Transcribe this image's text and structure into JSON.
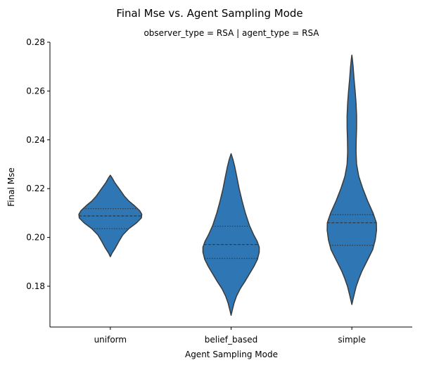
{
  "chart_data": {
    "type": "violin",
    "title": "Final Mse vs. Agent Sampling Mode",
    "subtitle": "observer_type = RSA | agent_type = RSA",
    "xlabel": "Agent Sampling Mode",
    "ylabel": "Final Mse",
    "categories": [
      "uniform",
      "belief_based",
      "simple"
    ],
    "ylim": [
      0.164,
      0.28
    ],
    "yticks": [
      0.18,
      0.2,
      0.22,
      0.24,
      0.26,
      0.28
    ],
    "ytick_labels": [
      "0.18",
      "0.20",
      "0.22",
      "0.24",
      "0.26",
      "0.28"
    ],
    "grid": false,
    "colors": {
      "fill": "#2f77b4",
      "edge": "#3a3a3a"
    },
    "violins": [
      {
        "category": "uniform",
        "min": 0.1921,
        "max": 0.2255,
        "q1": 0.2036,
        "median": 0.2088,
        "q3": 0.2118,
        "profile": [
          [
            0.1921,
            0.0
          ],
          [
            0.1935,
            0.045
          ],
          [
            0.1955,
            0.13
          ],
          [
            0.1985,
            0.24
          ],
          [
            0.201,
            0.34
          ],
          [
            0.2035,
            0.5
          ],
          [
            0.206,
            0.72
          ],
          [
            0.208,
            0.85
          ],
          [
            0.2095,
            0.86
          ],
          [
            0.211,
            0.8
          ],
          [
            0.213,
            0.66
          ],
          [
            0.215,
            0.5
          ],
          [
            0.217,
            0.38
          ],
          [
            0.22,
            0.24
          ],
          [
            0.2225,
            0.12
          ],
          [
            0.2245,
            0.045
          ],
          [
            0.2255,
            0.0
          ]
        ]
      },
      {
        "category": "belief_based",
        "min": 0.1681,
        "max": 0.2343,
        "q1": 0.1914,
        "median": 0.1971,
        "q3": 0.2046,
        "profile": [
          [
            0.1681,
            0.0
          ],
          [
            0.17,
            0.03
          ],
          [
            0.173,
            0.08
          ],
          [
            0.176,
            0.15
          ],
          [
            0.179,
            0.25
          ],
          [
            0.182,
            0.38
          ],
          [
            0.185,
            0.5
          ],
          [
            0.188,
            0.62
          ],
          [
            0.191,
            0.72
          ],
          [
            0.194,
            0.77
          ],
          [
            0.196,
            0.77
          ],
          [
            0.1985,
            0.71
          ],
          [
            0.201,
            0.62
          ],
          [
            0.205,
            0.5
          ],
          [
            0.21,
            0.39
          ],
          [
            0.215,
            0.3
          ],
          [
            0.22,
            0.22
          ],
          [
            0.225,
            0.155
          ],
          [
            0.229,
            0.1
          ],
          [
            0.232,
            0.05
          ],
          [
            0.2343,
            0.0
          ]
        ]
      },
      {
        "category": "simple",
        "min": 0.1725,
        "max": 0.2747,
        "q1": 0.1968,
        "median": 0.206,
        "q3": 0.2093,
        "profile": [
          [
            0.1725,
            0.0
          ],
          [
            0.1745,
            0.03
          ],
          [
            0.177,
            0.07
          ],
          [
            0.18,
            0.12
          ],
          [
            0.183,
            0.19
          ],
          [
            0.186,
            0.27
          ],
          [
            0.189,
            0.37
          ],
          [
            0.192,
            0.47
          ],
          [
            0.195,
            0.57
          ],
          [
            0.199,
            0.64
          ],
          [
            0.203,
            0.675
          ],
          [
            0.206,
            0.67
          ],
          [
            0.21,
            0.58
          ],
          [
            0.215,
            0.43
          ],
          [
            0.22,
            0.3
          ],
          [
            0.225,
            0.19
          ],
          [
            0.23,
            0.13
          ],
          [
            0.235,
            0.115
          ],
          [
            0.24,
            0.12
          ],
          [
            0.245,
            0.13
          ],
          [
            0.25,
            0.13
          ],
          [
            0.255,
            0.115
          ],
          [
            0.26,
            0.09
          ],
          [
            0.265,
            0.06
          ],
          [
            0.27,
            0.035
          ],
          [
            0.273,
            0.015
          ],
          [
            0.2747,
            0.0
          ]
        ]
      }
    ]
  }
}
